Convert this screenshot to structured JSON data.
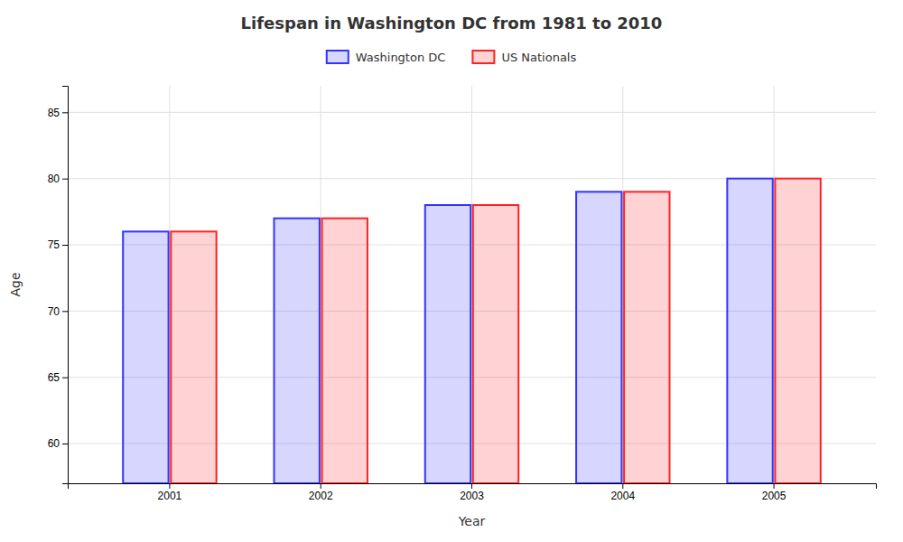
{
  "chart_data": {
    "type": "bar",
    "title": "Lifespan in Washington DC from 1981 to 2010",
    "x_label": "Year",
    "y_label": "Age",
    "categories": [
      "2001",
      "2002",
      "2003",
      "2004",
      "2005"
    ],
    "series": [
      {
        "name": "Washington DC",
        "color": "#3333ff",
        "values": [
          76,
          77,
          78,
          79,
          80
        ]
      },
      {
        "name": "US Nationals",
        "color": "#ff2222",
        "values": [
          76,
          77,
          78,
          79,
          80
        ]
      }
    ],
    "ylim": [
      57,
      87
    ],
    "yticks": [
      60,
      65,
      70,
      75,
      80,
      85
    ],
    "grid": true,
    "legend": "top"
  }
}
